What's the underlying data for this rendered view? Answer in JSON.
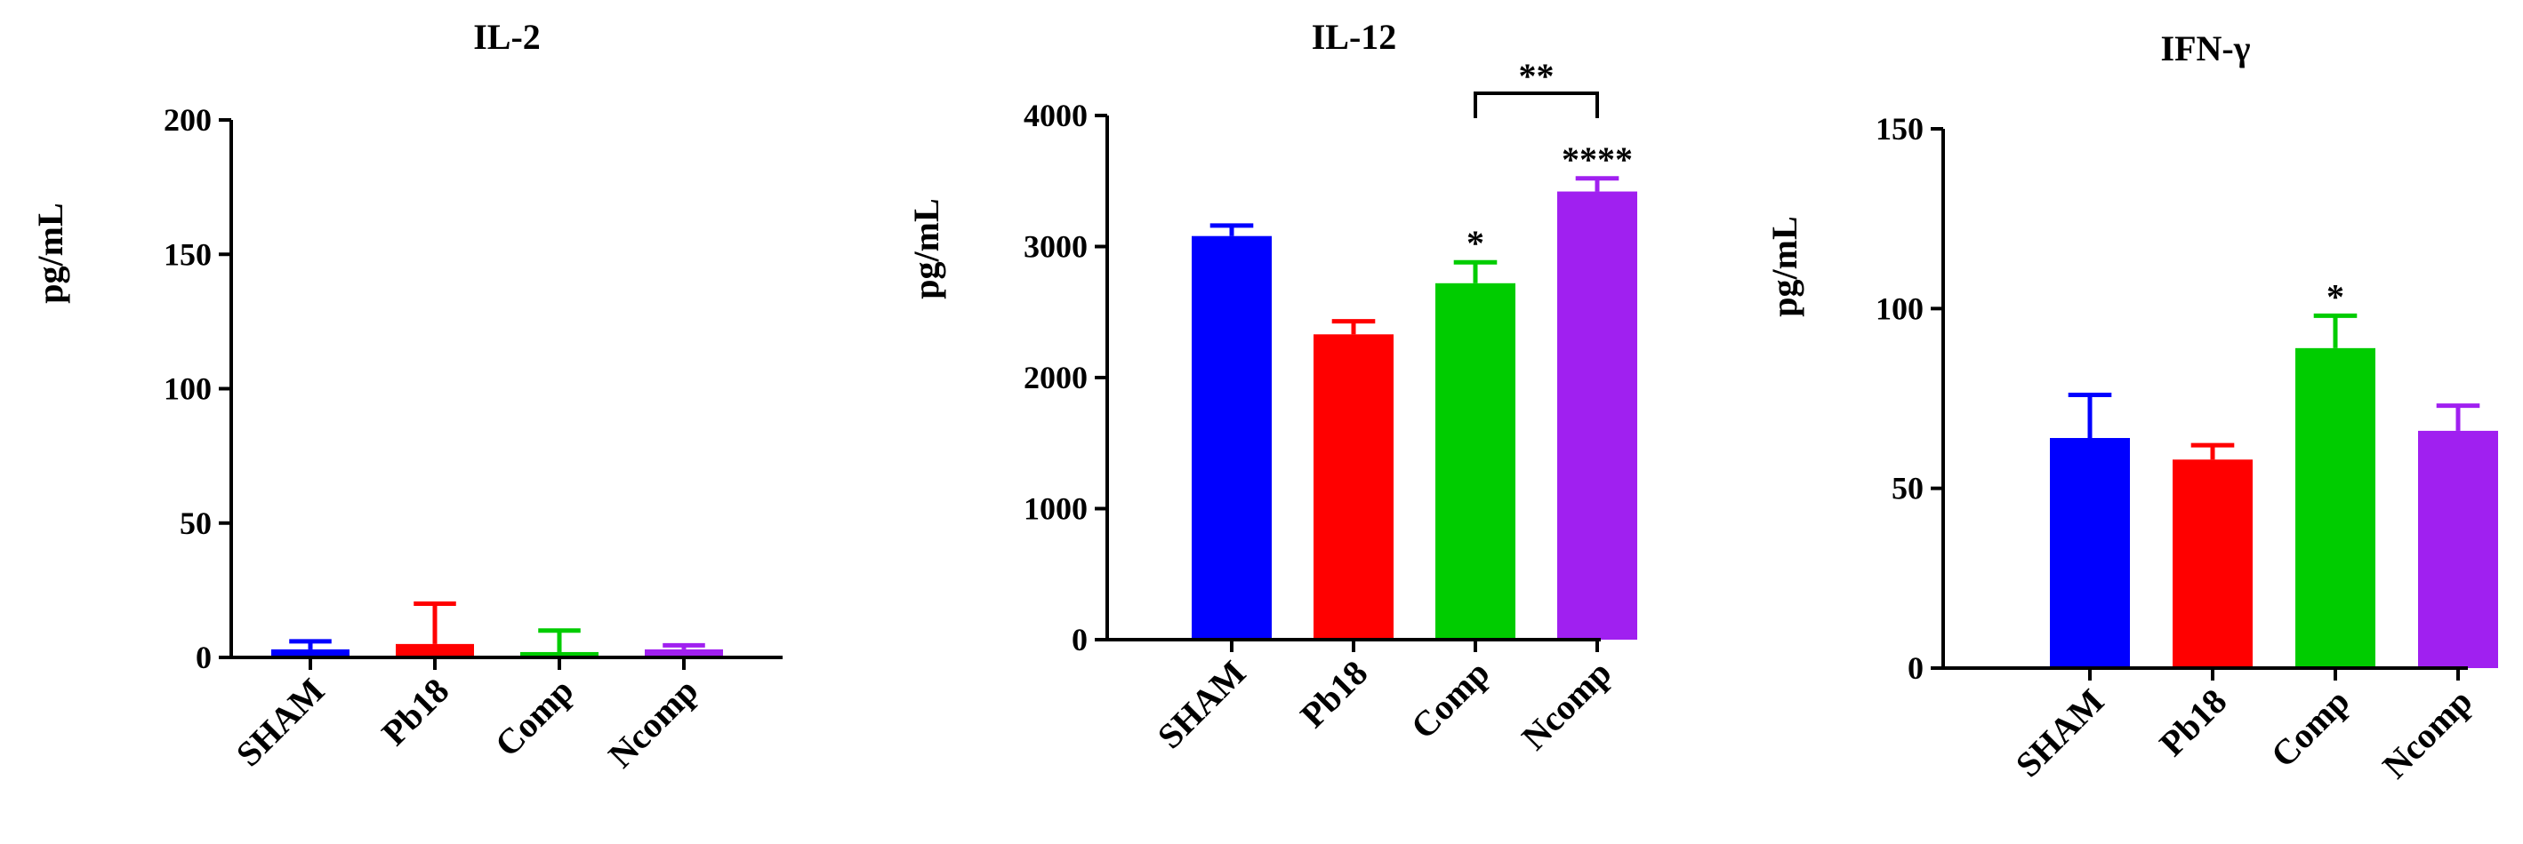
{
  "chart_data": [
    {
      "type": "bar",
      "title": "IL-2",
      "ylabel": "pg/mL",
      "xlabel": "",
      "categories": [
        "SHAM",
        "Pb18",
        "Comp",
        "Ncomp"
      ],
      "values": [
        3,
        5,
        2,
        3
      ],
      "errors": [
        3,
        15,
        8,
        1.5
      ],
      "colors": [
        "#0000ff",
        "#ff0000",
        "#00cc00",
        "#a020f0"
      ],
      "ylim": [
        0,
        200
      ],
      "yticks": [
        0,
        50,
        100,
        150,
        200
      ],
      "grid": false,
      "annotations": []
    },
    {
      "type": "bar",
      "title": "IL-12",
      "ylabel": "pg/mL",
      "xlabel": "",
      "categories": [
        "SHAM",
        "Pb18",
        "Comp",
        "Ncomp"
      ],
      "values": [
        3080,
        2330,
        2720,
        3420
      ],
      "errors": [
        80,
        100,
        160,
        100
      ],
      "colors": [
        "#0000ff",
        "#ff0000",
        "#00cc00",
        "#a020f0"
      ],
      "ylim": [
        0,
        4000
      ],
      "yticks": [
        0,
        1000,
        2000,
        3000,
        4000
      ],
      "grid": false,
      "annotations": [
        {
          "category": "Comp",
          "text": "*"
        },
        {
          "category": "Ncomp",
          "text": "****"
        }
      ],
      "bracket": {
        "from": "Comp",
        "to": "Ncomp",
        "text": "**"
      }
    },
    {
      "type": "bar",
      "title": "IFN-γ",
      "ylabel": "pg/mL",
      "xlabel": "",
      "categories": [
        "SHAM",
        "Pb18",
        "Comp",
        "Ncomp"
      ],
      "values": [
        64,
        58,
        89,
        66
      ],
      "errors": [
        12,
        4,
        9,
        7
      ],
      "colors": [
        "#0000ff",
        "#ff0000",
        "#00cc00",
        "#a020f0"
      ],
      "ylim": [
        0,
        150
      ],
      "yticks": [
        0,
        50,
        100,
        150
      ],
      "grid": false,
      "annotations": [
        {
          "category": "Comp",
          "text": "*"
        }
      ]
    }
  ]
}
